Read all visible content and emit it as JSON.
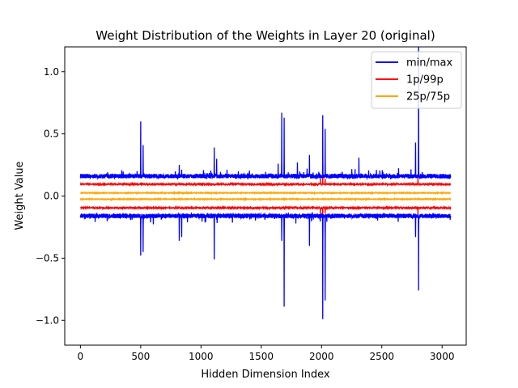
{
  "chart_data": {
    "type": "line",
    "title": "Weight Distribution of the Weights in Layer 20 (original)",
    "xlabel": "Hidden Dimension Index",
    "ylabel": "Weight Value",
    "xlim": [
      -130,
      3200
    ],
    "ylim": [
      -1.2,
      1.2
    ],
    "xticks": [
      0,
      500,
      1000,
      1500,
      2000,
      2500,
      3000
    ],
    "xtick_labels": [
      "0",
      "500",
      "1000",
      "1500",
      "2000",
      "2500",
      "3000"
    ],
    "yticks": [
      -1.0,
      -0.5,
      0.0,
      0.5,
      1.0
    ],
    "ytick_labels": [
      "−1.0",
      "−0.5",
      "0.0",
      "0.5",
      "1.0"
    ],
    "n_points": 3072,
    "grid": false,
    "legend_position": "top-right",
    "series": [
      {
        "name": "min/max",
        "color": "#0000ff",
        "upper_baseline": 0.16,
        "lower_baseline": -0.16,
        "upper_spikes": [
          [
            470,
            0.2
          ],
          [
            500,
            0.6
          ],
          [
            520,
            0.41
          ],
          [
            820,
            0.25
          ],
          [
            1110,
            0.39
          ],
          [
            1130,
            0.3
          ],
          [
            1640,
            0.26
          ],
          [
            1670,
            0.67
          ],
          [
            1690,
            0.63
          ],
          [
            1800,
            0.27
          ],
          [
            1880,
            0.22
          ],
          [
            1900,
            0.33
          ],
          [
            2010,
            0.65
          ],
          [
            2030,
            0.54
          ],
          [
            2310,
            0.31
          ],
          [
            2780,
            0.43
          ],
          [
            2805,
            1.25
          ]
        ],
        "lower_spikes": [
          [
            500,
            -0.48
          ],
          [
            520,
            -0.45
          ],
          [
            820,
            -0.36
          ],
          [
            840,
            -0.33
          ],
          [
            1110,
            -0.51
          ],
          [
            1670,
            -0.36
          ],
          [
            1690,
            -0.89
          ],
          [
            1900,
            -0.4
          ],
          [
            2010,
            -0.99
          ],
          [
            2030,
            -0.84
          ],
          [
            2780,
            -0.33
          ],
          [
            2805,
            -0.76
          ]
        ]
      },
      {
        "name": "1p/99p",
        "color": "#ff0000",
        "upper_baseline": 0.095,
        "lower_baseline": -0.095,
        "upper_spikes": [
          [
            1990,
            0.14
          ],
          [
            2010,
            0.17
          ],
          [
            2030,
            0.14
          ],
          [
            2800,
            0.17
          ]
        ],
        "lower_spikes": [
          [
            1990,
            -0.15
          ],
          [
            2010,
            -0.17
          ],
          [
            2030,
            -0.14
          ],
          [
            2800,
            -0.17
          ]
        ]
      },
      {
        "name": "25p/75p",
        "color": "#ffa500",
        "upper_baseline": 0.025,
        "lower_baseline": -0.025,
        "upper_spikes": [],
        "lower_spikes": []
      }
    ]
  }
}
